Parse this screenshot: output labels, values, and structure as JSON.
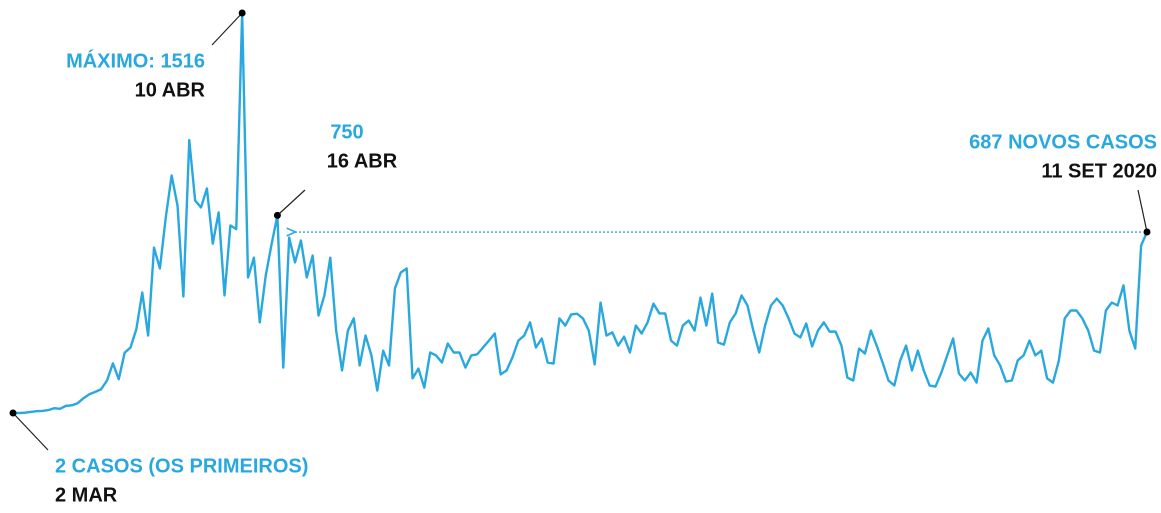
{
  "chart_data": {
    "type": "line",
    "color": "#29a8e0",
    "values": [
      2,
      2,
      3,
      6,
      9,
      10,
      13,
      20,
      18,
      29,
      31,
      39,
      58,
      73,
      82,
      92,
      125,
      190,
      130,
      230,
      250,
      320,
      458,
      295,
      628,
      549,
      742,
      901,
      787,
      443,
      1035,
      806,
      780,
      852,
      643,
      761,
      447,
      712,
      698,
      1516,
      515,
      590,
      345,
      520,
      640,
      750,
      174,
      666,
      572,
      655,
      515,
      598,
      371,
      447,
      590,
      314,
      163,
      314,
      360,
      182,
      295,
      220,
      87,
      238,
      182,
      473,
      534,
      549,
      133,
      170,
      98,
      231,
      220,
      193,
      265,
      231,
      231,
      174,
      220,
      224,
      250,
      276,
      303,
      148,
      163,
      212,
      276,
      295,
      345,
      250,
      284,
      193,
      189,
      360,
      333,
      375,
      378,
      360,
      314,
      186,
      420,
      295,
      307,
      257,
      291,
      231,
      333,
      303,
      345,
      416,
      379,
      379,
      276,
      257,
      333,
      352,
      314,
      439,
      333,
      454,
      269,
      261,
      345,
      379,
      447,
      409,
      314,
      231,
      333,
      409,
      435,
      409,
      360,
      303,
      288,
      341,
      254,
      314,
      345,
      310,
      310,
      257,
      136,
      125,
      246,
      227,
      314,
      257,
      193,
      125,
      106,
      201,
      257,
      163,
      238,
      163,
      106,
      102,
      155,
      220,
      284,
      151,
      125,
      155,
      117,
      276,
      322,
      220,
      182,
      121,
      125,
      201,
      220,
      276,
      220,
      238,
      133,
      117,
      201,
      360,
      390,
      390,
      360,
      314,
      238,
      231,
      390,
      420,
      409,
      485,
      314,
      246,
      636,
      687
    ],
    "annotations": [
      {
        "label": "2 CASOS (OS PRIMEIROS)",
        "value": 2,
        "date": "2 MAR"
      },
      {
        "label": "MÁXIMO: 1516",
        "value": 1516,
        "date": "10 ABR"
      },
      {
        "label": "750",
        "value": 750,
        "date": "16 ABR"
      },
      {
        "label": "687 NOVOS CASOS",
        "value": 687,
        "date": "11 SET 2020"
      }
    ]
  }
}
